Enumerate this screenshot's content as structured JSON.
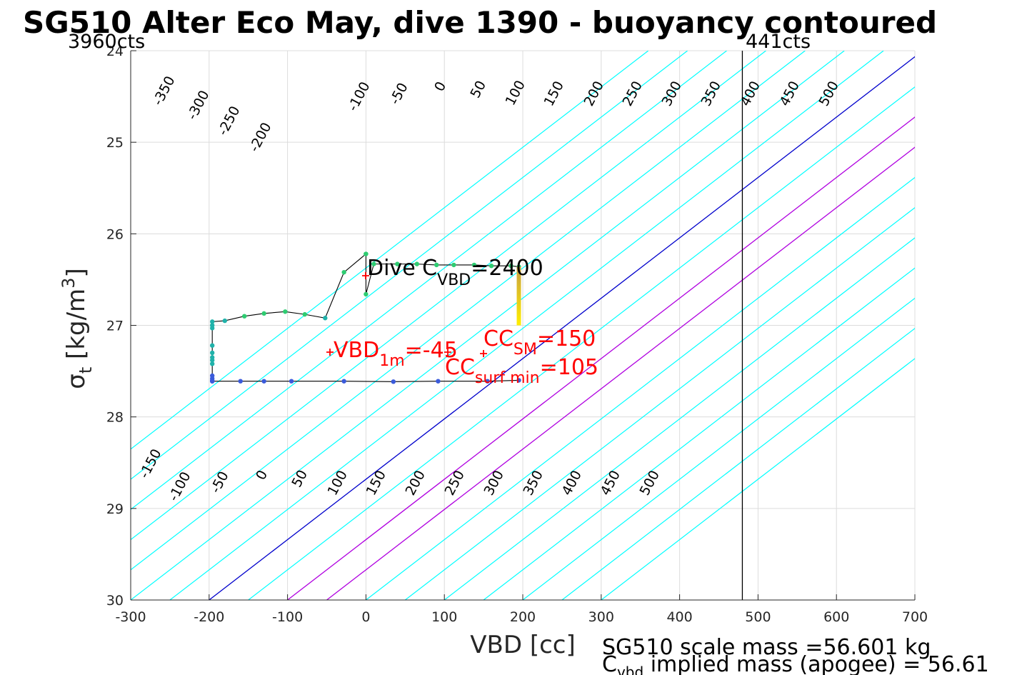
{
  "chart_data": {
    "type": "line",
    "title": "SG510 Alter Eco May, dive 1390 - buoyancy contoured",
    "xlabel": "VBD [cc]",
    "ylabel_symbol": "σ",
    "ylabel_subscript": "t",
    "ylabel_unit": "[kg/m",
    "ylabel_unit_sup": "3",
    "ylabel_unit_close": "]",
    "xlim": [
      -300,
      700
    ],
    "ylim": [
      24,
      30
    ],
    "y_reversed": true,
    "grid": true,
    "x_ticks": [
      "-300",
      "-200",
      "-100",
      "0",
      "100",
      "200",
      "300",
      "400",
      "500",
      "600",
      "700"
    ],
    "y_ticks": [
      "24",
      "25",
      "26",
      "27",
      "28",
      "29",
      "30"
    ],
    "top_left_label": "3960cts",
    "top_right_label": "441cts",
    "vbd_max_line_x": 480,
    "vbd_min_line_x": -200,
    "contours": {
      "levels": [
        -350,
        -300,
        -250,
        -200,
        -150,
        -100,
        -50,
        0,
        50,
        100,
        150,
        200,
        250,
        300,
        350,
        400,
        450,
        500
      ],
      "cyan_color": "#00ffff",
      "zero_color": "#0000cc",
      "highlight_color": "#b000e0",
      "highlight_levels": [
        100,
        150
      ],
      "labels_top": [
        "-350",
        "-300",
        "-250",
        "-200",
        "-100",
        "-50",
        "0",
        "50",
        "100",
        "150",
        "200",
        "250",
        "300",
        "350",
        "400",
        "450",
        "500"
      ],
      "labels_bottom": [
        "-150",
        "-100",
        "-50",
        "0",
        "50",
        "100",
        "150",
        "200",
        "250",
        "300",
        "350",
        "400",
        "450",
        "500"
      ]
    },
    "series": [
      {
        "points_color_scale": [
          "#3b5bdb",
          "#20b2aa",
          "#2ecc71"
        ],
        "x": [
          0,
          -28,
          -52,
          -78,
          -103,
          -130,
          -155,
          -180,
          -196,
          -196,
          -196,
          -196,
          -196,
          -196,
          -196,
          -196,
          -196,
          -196,
          -196,
          -196,
          -196,
          -160,
          -130,
          -95,
          -28,
          35,
          92,
          155,
          195
        ],
        "y": [
          26.22,
          26.42,
          26.92,
          26.88,
          26.85,
          26.87,
          26.9,
          26.95,
          26.96,
          27.0,
          27.03,
          27.22,
          27.3,
          27.35,
          27.38,
          27.42,
          27.55,
          27.58,
          27.6,
          27.61,
          27.61,
          27.61,
          27.61,
          27.61,
          27.61,
          27.615,
          27.61,
          27.61,
          27.6
        ]
      },
      {
        "x": [
          0,
          0,
          10,
          40,
          65,
          90,
          112,
          138,
          160,
          185,
          195
        ],
        "y": [
          26.22,
          26.66,
          26.33,
          26.33,
          26.33,
          26.34,
          26.34,
          26.34,
          26.35,
          26.35,
          26.36
        ]
      }
    ],
    "color_bar": {
      "x": 195,
      "y_top": 26.36,
      "y_bottom": 27.0,
      "colors": [
        "#c8a040",
        "#ffee00"
      ]
    },
    "markers": [
      {
        "x": -45,
        "y": 27.3,
        "color": "#ff0000"
      },
      {
        "x": 150,
        "y": 27.3,
        "color": "#ff0000"
      },
      {
        "x": 105,
        "y": 27.3,
        "color": "#ff0000"
      },
      {
        "x": 0,
        "y": 26.45,
        "color": "#ff0000"
      }
    ],
    "annotations": {
      "dive_c_main": "Dive C",
      "dive_c_sub": "VBD",
      "dive_c_value": "=2400",
      "vbd1m_main": "VBD",
      "vbd1m_sub": "1m",
      "vbd1m_value": "=-45",
      "ccsm_main": "CC",
      "ccsm_sub": "SM",
      "ccsm_value": "=150",
      "ccsurf_main": "CC",
      "ccsurf_sub": "surf min",
      "ccsurf_value": "=105"
    },
    "footer": {
      "line1": "SG510 scale mass =56.601 kg",
      "line2_main": "C",
      "line2_sub": "vbd",
      "line2_rest": " implied mass (apogee) = 56.61"
    }
  }
}
